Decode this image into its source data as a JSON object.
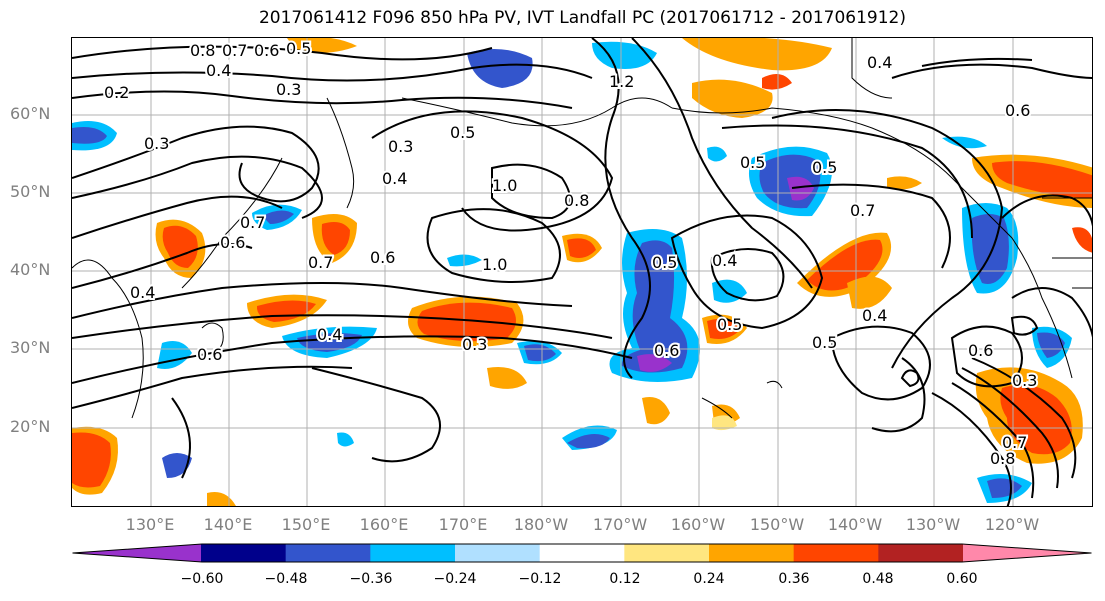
{
  "title": "2017061412 F096 850 hPa PV, IVT Landfall PC (2017061712 - 2017061912)",
  "lat_labels": [
    "60°N",
    "50°N",
    "40°N",
    "30°N",
    "20°N"
  ],
  "lon_labels": [
    "130°E",
    "140°E",
    "150°E",
    "160°E",
    "170°E",
    "180°W",
    "170°W",
    "160°W",
    "150°W",
    "140°W",
    "130°W",
    "120°W"
  ],
  "colorbar": {
    "colors": [
      "#9932cc",
      "#00008b",
      "#3355cc",
      "#00bfff",
      "#b0e0ff",
      "#ffffff",
      "#ffe680",
      "#ffa500",
      "#ff4500",
      "#b22222",
      "#ff88aa"
    ],
    "ticks": [
      "−0.60",
      "−0.48",
      "−0.36",
      "−0.24",
      "−0.12",
      "0.12",
      "0.24",
      "0.36",
      "0.48",
      "0.60"
    ]
  },
  "contour_labels": [
    "0.8",
    "0.7",
    "0.6",
    "0.5",
    "0.4",
    "0.3",
    "0.2",
    "0.3",
    "1.2",
    "0.4",
    "0.6",
    "0.3",
    "1.0",
    "0.8",
    "0.5",
    "0.4",
    "0.7",
    "0.6",
    "0.5",
    "0.4",
    "0.3",
    "0.7",
    "0.6",
    "1.0",
    "0.5",
    "0.4",
    "0.5",
    "0.4",
    "0.7",
    "0.5",
    "0.6",
    "0.3",
    "0.7",
    "0.8",
    "0.6",
    "0.5",
    "0.4",
    "0.6"
  ]
}
